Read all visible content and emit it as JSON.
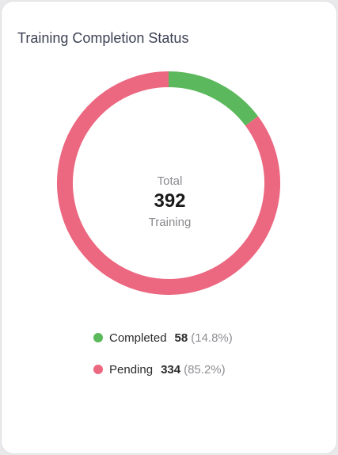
{
  "card": {
    "title": "Training Completion Status"
  },
  "center": {
    "top_text": "Total",
    "value": "392",
    "bottom_text": "Training"
  },
  "legend": [
    {
      "label": "Completed",
      "count": "58",
      "pct": "(14.8%)",
      "color": "#5cb85c"
    },
    {
      "label": "Pending",
      "count": "334",
      "pct": "(85.2%)",
      "color": "#ec6780"
    }
  ],
  "chart_data": {
    "type": "pie",
    "title": "Training Completion Status",
    "total": 392,
    "slices": [
      {
        "name": "Completed",
        "value": 58,
        "percent": 14.8,
        "color": "#5cb85c"
      },
      {
        "name": "Pending",
        "value": 334,
        "percent": 85.2,
        "color": "#ec6780"
      }
    ]
  }
}
